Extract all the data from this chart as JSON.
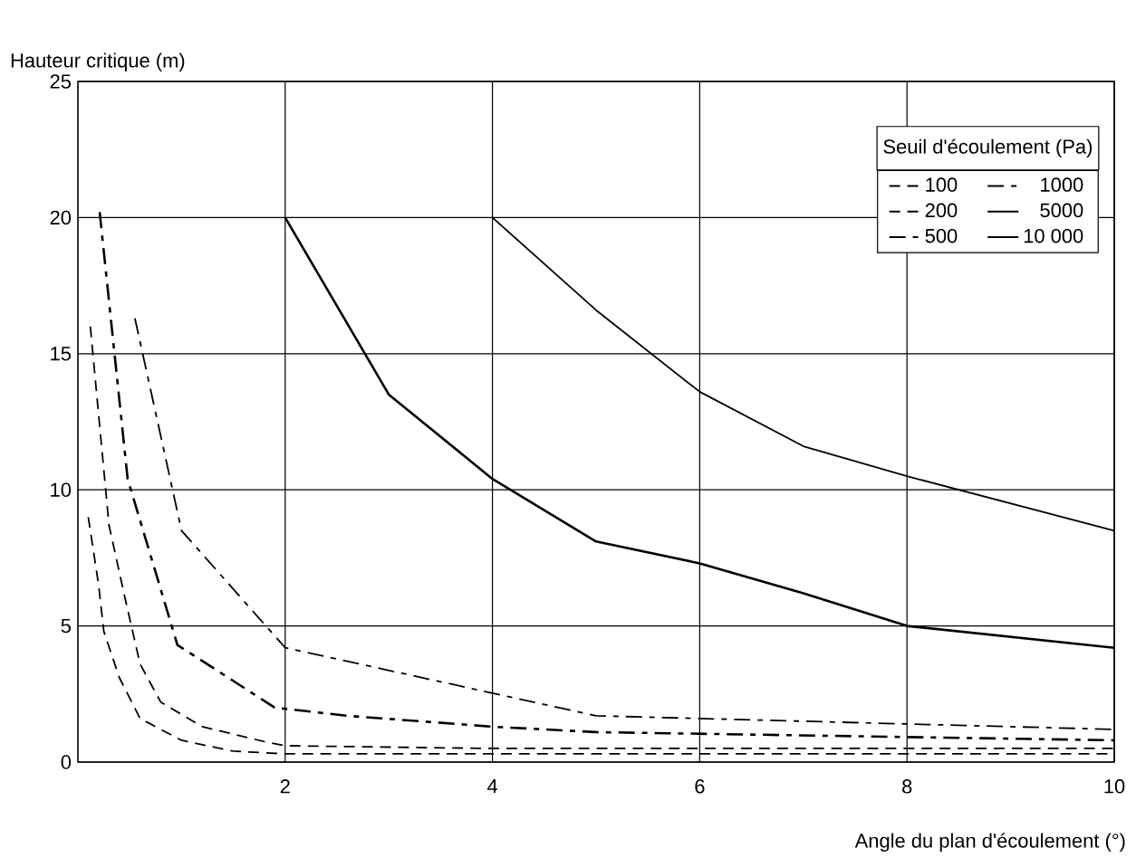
{
  "chart_data": {
    "type": "line",
    "xlabel": "Angle du plan d'écoulement (°)",
    "ylabel": "Hauteur critique (m)",
    "legend_title": "Seuil d'écoulement (Pa)",
    "xlim": [
      0,
      10
    ],
    "ylim": [
      0,
      25
    ],
    "xticks": [
      2,
      4,
      6,
      8,
      10
    ],
    "yticks": [
      0,
      5,
      10,
      15,
      20,
      25
    ],
    "grid": true,
    "legend": "top right",
    "marker": "none",
    "series": [
      {
        "name": "100",
        "color": "#000000",
        "line_style": "dashed",
        "x": [
          0.1,
          0.2,
          0.25,
          0.4,
          0.6,
          1,
          1.5,
          2,
          4,
          6,
          8,
          10
        ],
        "values": [
          9,
          6.5,
          4.8,
          3.1,
          1.6,
          0.8,
          0.4,
          0.3,
          0.3,
          0.3,
          0.3,
          0.3
        ]
      },
      {
        "name": "200",
        "color": "#000000",
        "line_style": "dashed",
        "x": [
          0.12,
          0.3,
          0.45,
          0.6,
          0.8,
          1.2,
          1.8,
          2,
          4,
          6,
          8,
          10
        ],
        "values": [
          16,
          8.7,
          6.1,
          3.6,
          2.2,
          1.3,
          0.75,
          0.6,
          0.5,
          0.5,
          0.5,
          0.5
        ]
      },
      {
        "name": "500",
        "color": "#000000",
        "line_style": "dashdot",
        "x": [
          0.21,
          0.48,
          0.96,
          1.9,
          2.6,
          4,
          5,
          10
        ],
        "values": [
          20.2,
          10.4,
          4.3,
          2,
          1.7,
          1.3,
          1.1,
          0.8
        ]
      },
      {
        "name": "1000",
        "color": "#000000",
        "line_style": "dashdot",
        "x": [
          0.55,
          1,
          2,
          3.8,
          5,
          10
        ],
        "values": [
          16.3,
          8.5,
          4.2,
          2.7,
          1.7,
          1.2
        ]
      },
      {
        "name": "5000",
        "color": "#000000",
        "line_style": "solid",
        "x": [
          2,
          3,
          4,
          5,
          6,
          7,
          8,
          10
        ],
        "values": [
          20,
          13.5,
          10.4,
          8.1,
          7.3,
          6.2,
          5,
          4.2
        ]
      },
      {
        "name": "10 000",
        "color": "#000000",
        "line_style": "solid",
        "x": [
          4,
          5,
          6,
          7,
          8,
          10
        ],
        "values": [
          20,
          16.6,
          13.6,
          11.6,
          10.5,
          8.5
        ]
      }
    ]
  }
}
